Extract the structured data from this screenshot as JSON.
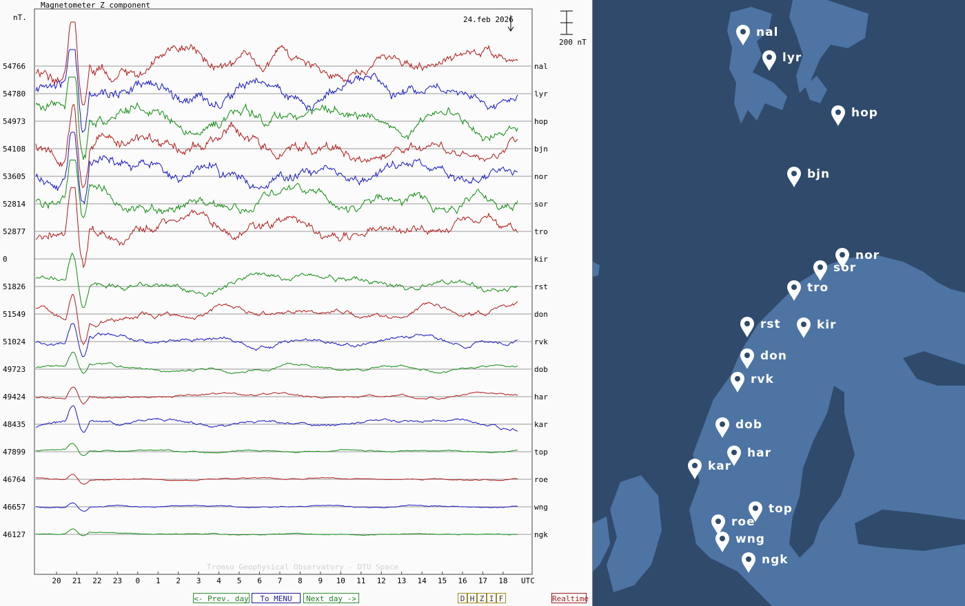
{
  "plot": {
    "title": "Magnetometer Z component",
    "unit_label": "nT.",
    "date_label": "24.feb 2026",
    "scale_label": "200 nT",
    "watermark": "Tromso Geophysical Observatory - DTU Space",
    "time_axis_label": "UTC",
    "time_ticks": [
      "20",
      "21",
      "22",
      "23",
      "0",
      "1",
      "2",
      "3",
      "4",
      "5",
      "6",
      "7",
      "8",
      "9",
      "10",
      "11",
      "12",
      "13",
      "14",
      "15",
      "16",
      "17",
      "18"
    ],
    "colors": {
      "red": "#b01818",
      "blue": "#1515c0",
      "green": "#118a11"
    },
    "stations": [
      {
        "code": "nal",
        "baseline": "54766",
        "color": "red",
        "amp": 1.0
      },
      {
        "code": "lyr",
        "baseline": "54780",
        "color": "blue",
        "amp": 1.0
      },
      {
        "code": "hop",
        "baseline": "54973",
        "color": "green",
        "amp": 1.0
      },
      {
        "code": "bjn",
        "baseline": "54108",
        "color": "red",
        "amp": 1.0
      },
      {
        "code": "nor",
        "baseline": "53605",
        "color": "blue",
        "amp": 1.0
      },
      {
        "code": "sor",
        "baseline": "52814",
        "color": "green",
        "amp": 0.9
      },
      {
        "code": "tro",
        "baseline": "52877",
        "color": "red",
        "amp": 0.9
      },
      {
        "code": "kir",
        "baseline": "0",
        "color": "none",
        "amp": 0
      },
      {
        "code": "rst",
        "baseline": "51826",
        "color": "green",
        "amp": 0.6
      },
      {
        "code": "don",
        "baseline": "51549",
        "color": "red",
        "amp": 0.5
      },
      {
        "code": "rvk",
        "baseline": "51024",
        "color": "blue",
        "amp": 0.4
      },
      {
        "code": "dob",
        "baseline": "49723",
        "color": "green",
        "amp": 0.25
      },
      {
        "code": "har",
        "baseline": "49424",
        "color": "red",
        "amp": 0.2
      },
      {
        "code": "kar",
        "baseline": "48435",
        "color": "blue",
        "amp": 0.3
      },
      {
        "code": "top",
        "baseline": "47899",
        "color": "green",
        "amp": 0.12
      },
      {
        "code": "roe",
        "baseline": "46764",
        "color": "red",
        "amp": 0.1
      },
      {
        "code": "wng",
        "baseline": "46657",
        "color": "blue",
        "amp": 0.1
      },
      {
        "code": "ngk",
        "baseline": "46127",
        "color": "green",
        "amp": 0.08
      }
    ]
  },
  "buttons": {
    "prev": "<- Prev. day",
    "menu": "To MENU",
    "next": "Next day ->",
    "components": [
      "D",
      "H",
      "Z",
      "I",
      "F"
    ],
    "realtime": "Realtime"
  },
  "map": {
    "markers": [
      {
        "code": "nal"
      },
      {
        "code": "lyr"
      },
      {
        "code": "hop"
      },
      {
        "code": "bjn"
      },
      {
        "code": "nor"
      },
      {
        "code": "sor"
      },
      {
        "code": "tro"
      },
      {
        "code": "rst"
      },
      {
        "code": "kir"
      },
      {
        "code": "don"
      },
      {
        "code": "rvk"
      },
      {
        "code": "dob"
      },
      {
        "code": "har"
      },
      {
        "code": "kar"
      },
      {
        "code": "top"
      },
      {
        "code": "roe"
      },
      {
        "code": "wng"
      },
      {
        "code": "ngk"
      }
    ]
  }
}
